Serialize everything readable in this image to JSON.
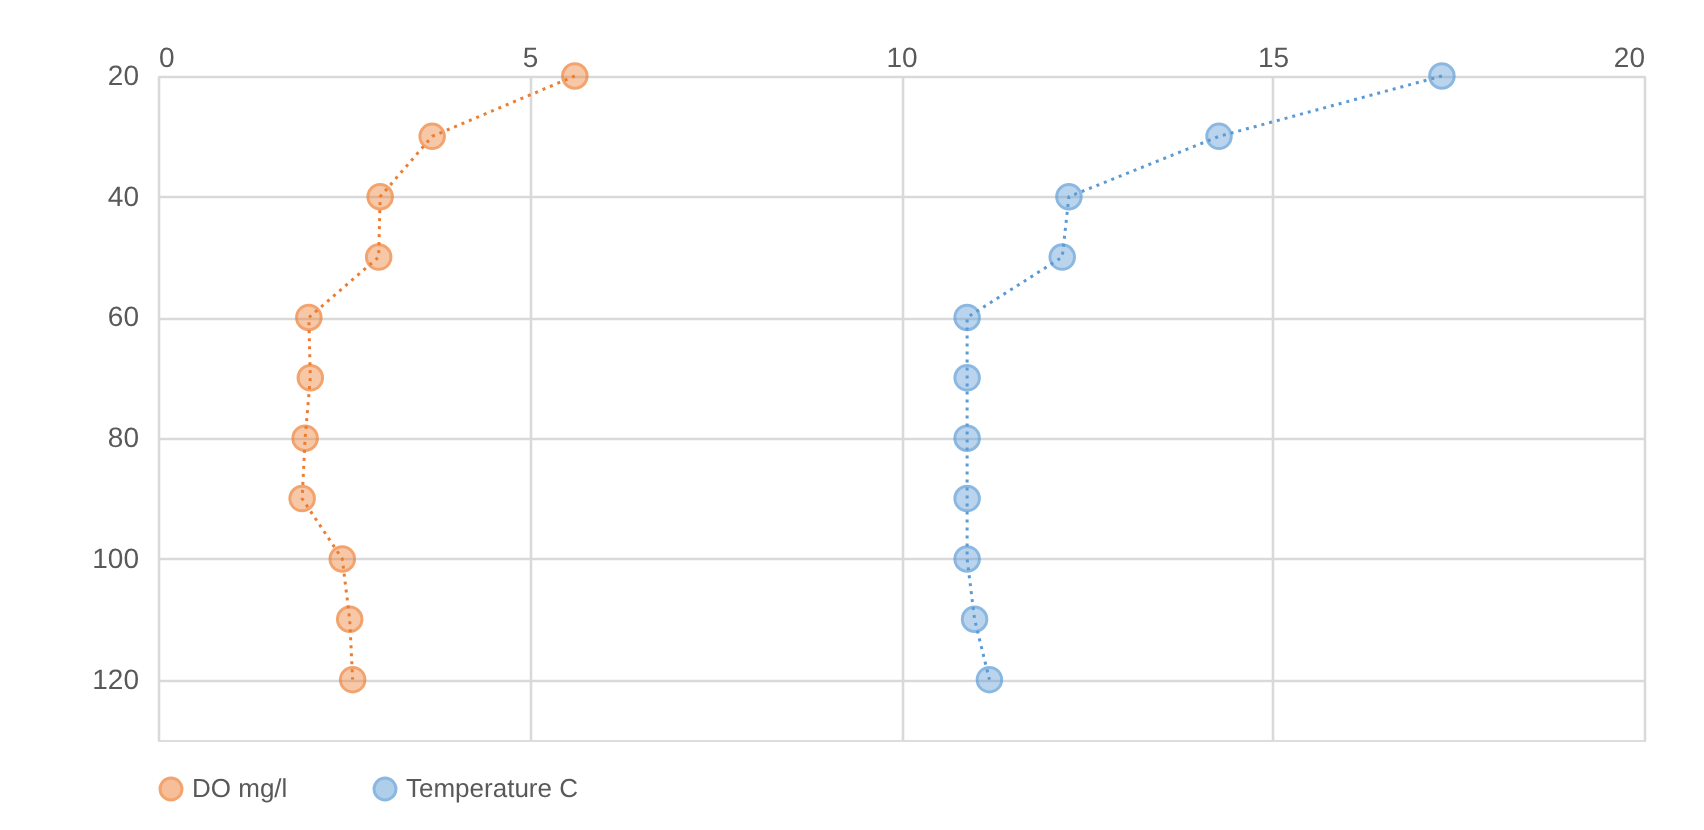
{
  "chart_data": {
    "type": "line",
    "marker": "circle",
    "line_style": "dotted",
    "grid": true,
    "legend": "bottom",
    "xlim": [
      0,
      20
    ],
    "xticks": [
      0,
      5,
      10,
      15,
      20
    ],
    "ylim": [
      130,
      20
    ],
    "yticks": [
      20,
      40,
      60,
      80,
      100,
      120
    ],
    "series": [
      {
        "name": "DO mg/l",
        "color": "#ed7d31",
        "x": [
          5.61,
          3.69,
          2.99,
          2.97,
          2.03,
          2.05,
          1.98,
          1.94,
          2.48,
          2.58,
          2.62
        ],
        "values": [
          20,
          30,
          40,
          50,
          60,
          70,
          80,
          90,
          100,
          110,
          120
        ]
      },
      {
        "name": "Temperature C",
        "color": "#5b9bd5",
        "x": [
          17.28,
          14.28,
          12.26,
          12.17,
          10.89,
          10.89,
          10.89,
          10.89,
          10.89,
          10.99,
          11.19
        ],
        "values": [
          20,
          30,
          40,
          50,
          60,
          70,
          80,
          90,
          100,
          110,
          120
        ]
      }
    ]
  }
}
